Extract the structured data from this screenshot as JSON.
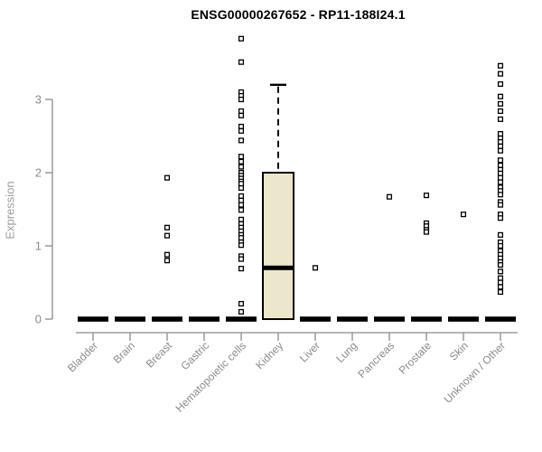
{
  "header": {
    "title": "ENSG00000267652 - RP11-188I24.1"
  },
  "chart_data": {
    "type": "boxplot",
    "title": "ENSG00000267652 - RP11-188I24.1",
    "xlabel": "",
    "ylabel": "Expression",
    "ylim": [
      0,
      3.9
    ],
    "yticks": [
      0,
      1,
      2,
      3
    ],
    "grid": false,
    "legend": "none",
    "marker": "open-square",
    "colors": {
      "box_fill": "#ECE7CC",
      "box_border": "#000000",
      "median": "#000000",
      "outlier": "#000000",
      "axis": "#8B8B8B",
      "tick_text": "#8B8B8B",
      "title_text": "#000000"
    },
    "categories": [
      "Bladder",
      "Brain",
      "Breast",
      "Gastric",
      "Hematopoietic cells",
      "Kidney",
      "Liver",
      "Lung",
      "Pancreas",
      "Prostate",
      "Skin",
      "Unknown / Other"
    ],
    "boxes": [
      {
        "category": "Bladder",
        "whisker_low": 0,
        "q1": 0,
        "median": 0,
        "q3": 0,
        "whisker_high": 0,
        "outliers": []
      },
      {
        "category": "Brain",
        "whisker_low": 0,
        "q1": 0,
        "median": 0,
        "q3": 0,
        "whisker_high": 0,
        "outliers": []
      },
      {
        "category": "Breast",
        "whisker_low": 0,
        "q1": 0,
        "median": 0,
        "q3": 0,
        "whisker_high": 0,
        "outliers": [
          1.93,
          1.25,
          1.14,
          0.88,
          0.8
        ]
      },
      {
        "category": "Gastric",
        "whisker_low": 0,
        "q1": 0,
        "median": 0,
        "q3": 0,
        "whisker_high": 0,
        "outliers": []
      },
      {
        "category": "Hematopoietic cells",
        "whisker_low": 0,
        "q1": 0,
        "median": 0,
        "q3": 0,
        "whisker_high": 0,
        "outliers": [
          3.83,
          3.51,
          3.1,
          3.05,
          3.0,
          2.84,
          2.78,
          2.63,
          2.57,
          2.44,
          2.22,
          2.15,
          2.08,
          2.0,
          1.96,
          1.92,
          1.88,
          1.85,
          1.79,
          1.68,
          1.62,
          1.56,
          1.49,
          1.36,
          1.3,
          1.25,
          1.2,
          1.15,
          1.11,
          1.05,
          1.01,
          0.86,
          0.82,
          0.69,
          0.21,
          0.1
        ]
      },
      {
        "category": "Kidney",
        "whisker_low": 0,
        "q1": 0,
        "median": 0.7,
        "q3": 2.0,
        "whisker_high": 3.2,
        "outliers": []
      },
      {
        "category": "Liver",
        "whisker_low": 0,
        "q1": 0,
        "median": 0,
        "q3": 0,
        "whisker_high": 0,
        "outliers": [
          0.7
        ]
      },
      {
        "category": "Lung",
        "whisker_low": 0,
        "q1": 0,
        "median": 0,
        "q3": 0,
        "whisker_high": 0,
        "outliers": []
      },
      {
        "category": "Pancreas",
        "whisker_low": 0,
        "q1": 0,
        "median": 0,
        "q3": 0,
        "whisker_high": 0,
        "outliers": [
          1.67
        ]
      },
      {
        "category": "Prostate",
        "whisker_low": 0,
        "q1": 0,
        "median": 0,
        "q3": 0,
        "whisker_high": 0,
        "outliers": [
          1.69,
          1.31,
          1.27,
          1.22,
          1.19
        ]
      },
      {
        "category": "Skin",
        "whisker_low": 0,
        "q1": 0,
        "median": 0,
        "q3": 0,
        "whisker_high": 0,
        "outliers": [
          1.43
        ]
      },
      {
        "category": "Unknown / Other",
        "whisker_low": 0,
        "q1": 0,
        "median": 0,
        "q3": 0,
        "whisker_high": 0,
        "outliers": [
          3.46,
          3.35,
          3.21,
          3.04,
          2.94,
          2.84,
          2.73,
          2.53,
          2.47,
          2.42,
          2.36,
          2.3,
          2.17,
          2.1,
          2.04,
          1.99,
          1.93,
          1.87,
          1.8,
          1.75,
          1.7,
          1.6,
          1.56,
          1.43,
          1.38,
          1.15,
          1.05,
          1.0,
          0.93,
          0.88,
          0.83,
          0.78,
          0.74,
          0.65,
          0.56,
          0.5,
          0.44,
          0.37
        ]
      }
    ]
  }
}
